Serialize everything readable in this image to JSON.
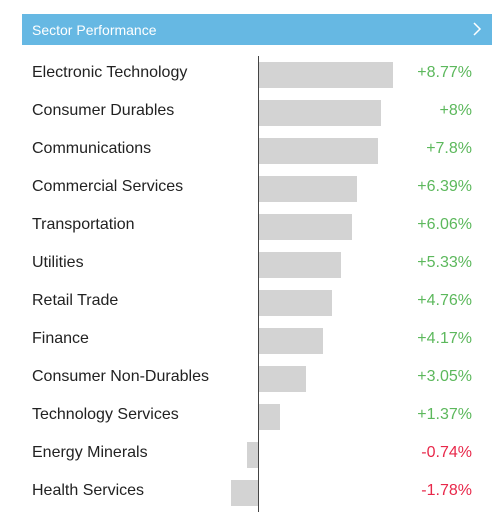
{
  "header": {
    "title": "Sector Performance",
    "chevron_icon": "chevron-right-icon"
  },
  "colors": {
    "header_bg": "#66b8e3",
    "positive": "#5cb85c",
    "negative": "#e8284a",
    "bar": "#d3d3d3"
  },
  "chart_data": {
    "type": "bar",
    "orientation": "horizontal",
    "categories": [
      "Electronic Technology",
      "Consumer Durables",
      "Communications",
      "Commercial Services",
      "Transportation",
      "Utilities",
      "Retail Trade",
      "Finance",
      "Consumer Non-Durables",
      "Technology Services",
      "Energy Minerals",
      "Health Services"
    ],
    "values": [
      8.77,
      8,
      7.8,
      6.39,
      6.06,
      5.33,
      4.76,
      4.17,
      3.05,
      1.37,
      -0.74,
      -1.78
    ],
    "labels": [
      "+8.77%",
      "+8%",
      "+7.8%",
      "+6.39%",
      "+6.06%",
      "+5.33%",
      "+4.76%",
      "+4.17%",
      "+3.05%",
      "+1.37%",
      "-0.74%",
      "-1.78%"
    ]
  }
}
